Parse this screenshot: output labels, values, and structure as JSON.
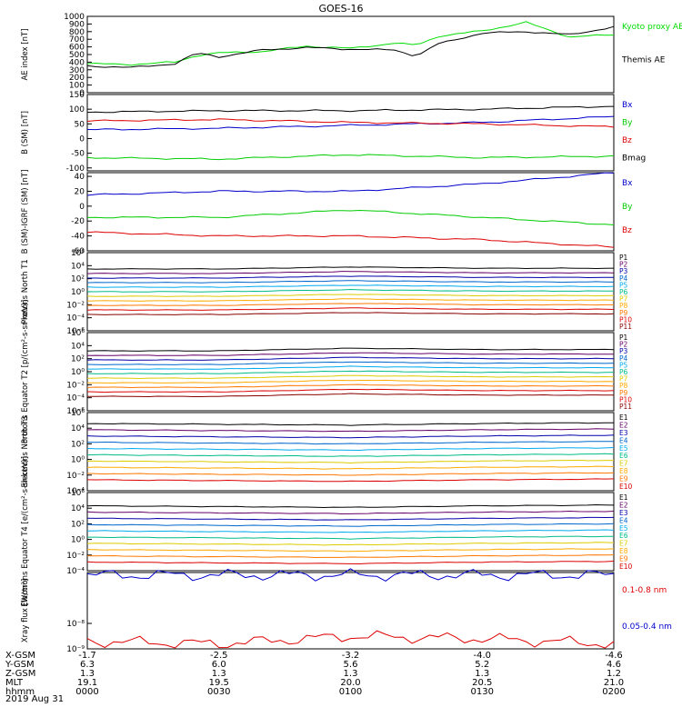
{
  "title": "GOES-16",
  "date_label": "2019 Aug 31",
  "chart_data": [
    {
      "type": "line",
      "ylabel": "AE index [nT]",
      "ylim": [
        0,
        1000
      ],
      "yticks": [
        0,
        100,
        200,
        300,
        400,
        500,
        600,
        700,
        800,
        900,
        1000
      ],
      "series": [
        {
          "name": "Kyoto proxy AE",
          "color": "#00dd00",
          "x": [
            0,
            10,
            20,
            25,
            30,
            40,
            50,
            60,
            70,
            75,
            80,
            90,
            100,
            110,
            120
          ],
          "values": [
            380,
            370,
            400,
            490,
            520,
            540,
            610,
            580,
            650,
            620,
            740,
            810,
            920,
            730,
            760
          ]
        },
        {
          "name": "Themis AE",
          "color": "#000000",
          "x": [
            0,
            10,
            20,
            25,
            30,
            40,
            50,
            60,
            70,
            75,
            80,
            90,
            100,
            110,
            120
          ],
          "values": [
            350,
            330,
            380,
            520,
            470,
            560,
            590,
            570,
            560,
            480,
            640,
            780,
            800,
            760,
            860
          ]
        }
      ]
    },
    {
      "type": "line",
      "ylabel": "B (SM) [nT]",
      "ylim": [
        -110,
        150
      ],
      "yticks": [
        -100,
        -50,
        0,
        50,
        100,
        150
      ],
      "series": [
        {
          "name": "Bx",
          "color": "#0000cc",
          "x": [
            0,
            30,
            60,
            90,
            120
          ],
          "values": [
            30,
            35,
            45,
            55,
            75
          ]
        },
        {
          "name": "By",
          "color": "#00cc00",
          "x": [
            0,
            30,
            60,
            90,
            120
          ],
          "values": [
            -65,
            -70,
            -55,
            -65,
            -60
          ]
        },
        {
          "name": "Bz",
          "color": "#dd0000",
          "x": [
            0,
            30,
            60,
            90,
            120
          ],
          "values": [
            60,
            65,
            55,
            50,
            40
          ]
        },
        {
          "name": "Bmag",
          "color": "#000000",
          "x": [
            0,
            30,
            60,
            90,
            120
          ],
          "values": [
            90,
            95,
            95,
            100,
            110
          ]
        }
      ]
    },
    {
      "type": "line",
      "ylabel": "B (SM)-IGRF (SM) [nT]",
      "ylim": [
        -60,
        45
      ],
      "yticks": [
        -60,
        -40,
        -20,
        0,
        20,
        40
      ],
      "series": [
        {
          "name": "Bx",
          "color": "#0000cc",
          "x": [
            0,
            30,
            60,
            90,
            120
          ],
          "values": [
            15,
            20,
            20,
            30,
            45
          ]
        },
        {
          "name": "By",
          "color": "#00cc00",
          "x": [
            0,
            30,
            60,
            90,
            120
          ],
          "values": [
            -15,
            -15,
            -5,
            -15,
            -25
          ]
        },
        {
          "name": "Bz",
          "color": "#dd0000",
          "x": [
            0,
            30,
            60,
            90,
            120
          ],
          "values": [
            -35,
            -40,
            -40,
            -45,
            -55
          ]
        }
      ]
    },
    {
      "type": "line",
      "ylabel": "Protons North T1",
      "scale": "log",
      "ylim_exp": [
        -6,
        6
      ],
      "yticks": [
        "10⁻⁶",
        "10⁻⁴",
        "10⁻²",
        "10⁰",
        "10²",
        "10⁴",
        "10⁶"
      ],
      "series": [
        {
          "name": "P1",
          "color": "#000000",
          "log_levels": [
            3.5,
            3.5,
            3.8,
            3.6,
            3.6
          ]
        },
        {
          "name": "P2",
          "color": "#660066",
          "log_levels": [
            2.8,
            2.8,
            3.1,
            2.9,
            2.9
          ]
        },
        {
          "name": "P3",
          "color": "#0000aa",
          "log_levels": [
            2.1,
            2.1,
            2.4,
            2.2,
            2.2
          ]
        },
        {
          "name": "P4",
          "color": "#0066cc",
          "log_levels": [
            1.4,
            1.4,
            1.7,
            1.5,
            1.5
          ]
        },
        {
          "name": "P5",
          "color": "#00aaee",
          "log_levels": [
            0.7,
            0.7,
            1.0,
            0.8,
            0.8
          ]
        },
        {
          "name": "P6",
          "color": "#00bb88",
          "log_levels": [
            0.0,
            0.0,
            0.3,
            0.1,
            0.1
          ]
        },
        {
          "name": "P7",
          "color": "#ddcc00",
          "log_levels": [
            -0.7,
            -0.7,
            -0.4,
            -0.6,
            -0.6
          ]
        },
        {
          "name": "P8",
          "color": "#ffaa00",
          "log_levels": [
            -1.4,
            -1.4,
            -1.1,
            -1.3,
            -1.3
          ]
        },
        {
          "name": "P9",
          "color": "#ff7700",
          "log_levels": [
            -2.1,
            -2.1,
            -1.8,
            -2.0,
            -2.0
          ]
        },
        {
          "name": "P10",
          "color": "#dd0000",
          "log_levels": [
            -2.8,
            -2.8,
            -2.5,
            -2.7,
            -2.7
          ]
        },
        {
          "name": "P11",
          "color": "#880000",
          "log_levels": [
            -3.5,
            -3.5,
            -3.2,
            -3.4,
            -3.4
          ]
        }
      ]
    },
    {
      "type": "line",
      "ylabel": "Protons Equator T2 [p/(cm²-s-sr-keV)]",
      "scale": "log",
      "ylim_exp": [
        -6,
        6
      ],
      "yticks": [
        "10⁻⁶",
        "10⁻⁴",
        "10⁻²",
        "10⁰",
        "10²",
        "10⁴",
        "10⁶"
      ],
      "series": [
        {
          "name": "P1",
          "color": "#000000",
          "log_levels": [
            3.2,
            3.2,
            3.6,
            3.4,
            3.4
          ]
        },
        {
          "name": "P2",
          "color": "#660066",
          "log_levels": [
            2.5,
            2.5,
            2.9,
            2.7,
            2.7
          ]
        },
        {
          "name": "P3",
          "color": "#0000aa",
          "log_levels": [
            1.8,
            1.8,
            2.2,
            2.0,
            2.0
          ]
        },
        {
          "name": "P4",
          "color": "#0066cc",
          "log_levels": [
            1.1,
            1.1,
            1.5,
            1.3,
            1.3
          ]
        },
        {
          "name": "P5",
          "color": "#00aaee",
          "log_levels": [
            0.4,
            0.4,
            0.8,
            0.6,
            0.6
          ]
        },
        {
          "name": "P6",
          "color": "#00bb88",
          "log_levels": [
            -0.3,
            -0.3,
            0.1,
            -0.1,
            -0.1
          ]
        },
        {
          "name": "P7",
          "color": "#ddcc00",
          "log_levels": [
            -1.0,
            -1.0,
            -0.6,
            -0.8,
            -0.8
          ]
        },
        {
          "name": "P8",
          "color": "#ffaa00",
          "log_levels": [
            -1.7,
            -1.7,
            -1.3,
            -1.5,
            -1.5
          ]
        },
        {
          "name": "P9",
          "color": "#ff7700",
          "log_levels": [
            -2.4,
            -2.4,
            -2.0,
            -2.2,
            -2.2
          ]
        },
        {
          "name": "P10",
          "color": "#dd0000",
          "log_levels": [
            -3.1,
            -3.1,
            -2.7,
            -2.9,
            -2.9
          ]
        },
        {
          "name": "P11",
          "color": "#880000",
          "log_levels": [
            -3.8,
            -3.8,
            -3.4,
            -3.6,
            -3.6
          ]
        }
      ]
    },
    {
      "type": "line",
      "ylabel": "Electrons North T3",
      "scale": "log",
      "ylim_exp": [
        -4,
        6
      ],
      "yticks": [
        "10⁻⁴",
        "10⁻²",
        "10⁰",
        "10²",
        "10⁴",
        "10⁶"
      ],
      "series": [
        {
          "name": "E1",
          "color": "#000000",
          "log_levels": [
            4.6,
            4.5,
            4.4,
            4.6,
            4.7
          ]
        },
        {
          "name": "E2",
          "color": "#660066",
          "log_levels": [
            3.8,
            3.7,
            3.6,
            3.8,
            3.9
          ]
        },
        {
          "name": "E3",
          "color": "#0000aa",
          "log_levels": [
            3.0,
            2.9,
            2.8,
            3.0,
            3.1
          ]
        },
        {
          "name": "E4",
          "color": "#0066cc",
          "log_levels": [
            2.2,
            2.1,
            2.0,
            2.2,
            2.3
          ]
        },
        {
          "name": "E5",
          "color": "#00aaee",
          "log_levels": [
            1.4,
            1.3,
            1.2,
            1.4,
            1.5
          ]
        },
        {
          "name": "E6",
          "color": "#00bb88",
          "log_levels": [
            0.6,
            0.5,
            0.4,
            0.6,
            0.7
          ]
        },
        {
          "name": "E7",
          "color": "#ddcc00",
          "log_levels": [
            -0.2,
            -0.3,
            -0.4,
            -0.2,
            -0.1
          ]
        },
        {
          "name": "E8",
          "color": "#ffaa00",
          "log_levels": [
            -1.0,
            -1.1,
            -1.2,
            -1.0,
            -0.9
          ]
        },
        {
          "name": "E9",
          "color": "#ff7700",
          "log_levels": [
            -1.8,
            -1.9,
            -2.0,
            -1.8,
            -1.7
          ]
        },
        {
          "name": "E10",
          "color": "#dd0000",
          "log_levels": [
            -2.6,
            -2.7,
            -2.8,
            -2.6,
            -2.5
          ]
        }
      ]
    },
    {
      "type": "line",
      "ylabel": "Electrons Equator T4 [e/(cm²-s-sr-keV)]",
      "scale": "log",
      "ylim_exp": [
        -4,
        6
      ],
      "yticks": [
        "10⁻⁴",
        "10⁻²",
        "10⁰",
        "10²",
        "10⁴",
        "10⁶"
      ],
      "series": [
        {
          "name": "E1",
          "color": "#000000",
          "log_levels": [
            4.3,
            4.2,
            4.1,
            4.3,
            4.4
          ]
        },
        {
          "name": "E2",
          "color": "#660066",
          "log_levels": [
            3.5,
            3.4,
            3.3,
            3.5,
            3.6
          ]
        },
        {
          "name": "E3",
          "color": "#0000aa",
          "log_levels": [
            2.7,
            2.6,
            2.5,
            2.7,
            2.8
          ]
        },
        {
          "name": "E4",
          "color": "#0066cc",
          "log_levels": [
            1.9,
            1.8,
            1.7,
            1.9,
            2.0
          ]
        },
        {
          "name": "E5",
          "color": "#00aaee",
          "log_levels": [
            1.1,
            1.0,
            0.9,
            1.1,
            1.2
          ]
        },
        {
          "name": "E6",
          "color": "#00bb88",
          "log_levels": [
            0.3,
            0.2,
            0.1,
            0.3,
            0.4
          ]
        },
        {
          "name": "E7",
          "color": "#ddcc00",
          "log_levels": [
            -0.5,
            -0.6,
            -0.7,
            -0.5,
            -0.4
          ]
        },
        {
          "name": "E8",
          "color": "#ffaa00",
          "log_levels": [
            -1.3,
            -1.4,
            -1.5,
            -1.3,
            -1.2
          ]
        },
        {
          "name": "E9",
          "color": "#ff7700",
          "log_levels": [
            -2.1,
            -2.2,
            -2.3,
            -2.1,
            -2.0
          ]
        },
        {
          "name": "E10",
          "color": "#dd0000",
          "log_levels": [
            -2.9,
            -3.0,
            -3.1,
            -2.9,
            -2.8
          ]
        }
      ]
    },
    {
      "type": "line",
      "ylabel": "Xray flux [W/m²]",
      "scale": "log",
      "ylim_exp": [
        -9,
        -6
      ],
      "yticks": [
        "10⁻⁹",
        "10⁻⁸"
      ],
      "series": [
        {
          "name": "0.1-0.8 nm",
          "color": "#dd0000",
          "log_levels": [
            -8.7,
            -8.8,
            -8.5,
            -8.6,
            -8.8
          ]
        },
        {
          "name": "0.05-0.4 nm",
          "color": "#0000cc",
          "log_levels": [
            -6.1,
            -6.1,
            -6.1,
            -6.1,
            -6.1
          ]
        }
      ]
    }
  ],
  "ephemeris": {
    "row_labels": [
      "X-GSM",
      "Y-GSM",
      "Z-GSM",
      "MLT",
      "hhmm"
    ],
    "columns": [
      [
        "-1.7",
        "6.3",
        "1.3",
        "19.1",
        "0000"
      ],
      [
        "-2.5",
        "6.0",
        "1.3",
        "19.5",
        "0030"
      ],
      [
        "-3.2",
        "5.6",
        "1.3",
        "20.0",
        "0100"
      ],
      [
        "-4.0",
        "5.2",
        "1.3",
        "20.5",
        "0130"
      ],
      [
        "-4.6",
        "4.6",
        "1.2",
        "21.0",
        "0200"
      ]
    ]
  }
}
